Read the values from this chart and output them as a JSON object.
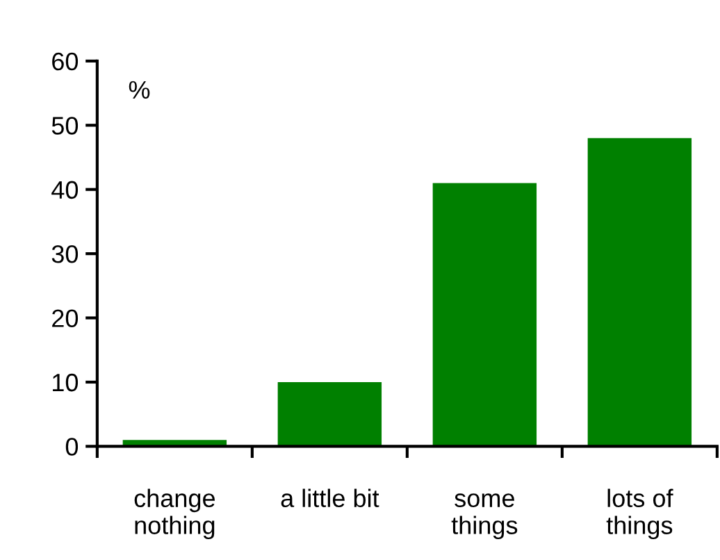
{
  "chart_data": {
    "type": "bar",
    "ylabel": "%",
    "categories": [
      "change\nnothing",
      "a little bit",
      "some\nthings",
      "lots of\nthings"
    ],
    "values": [
      1,
      10,
      41,
      48
    ],
    "color": "#008000",
    "ylim": [
      0,
      60
    ],
    "yticks": [
      0,
      10,
      20,
      30,
      40,
      50,
      60
    ],
    "grid": false,
    "legend": false
  }
}
